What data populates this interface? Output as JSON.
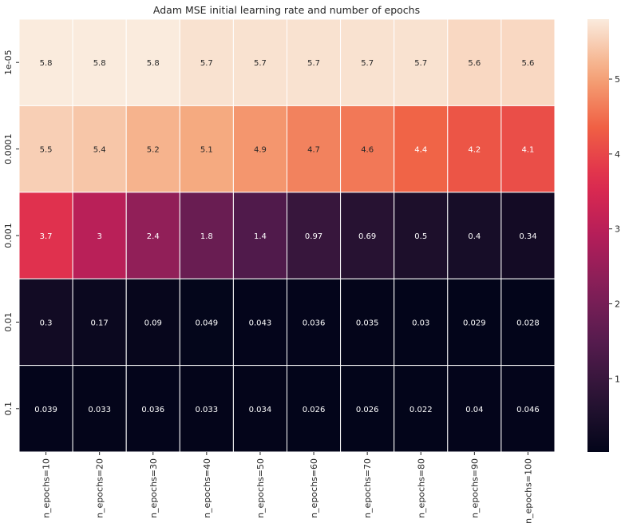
{
  "chart_data": {
    "type": "heatmap",
    "title": "Adam MSE initial learning rate and number of epochs",
    "xlabel": "",
    "ylabel": "",
    "x_categories": [
      "n_epochs=10",
      "n_epochs=20",
      "n_epochs=30",
      "n_epochs=40",
      "n_epochs=50",
      "n_epochs=60",
      "n_epochs=70",
      "n_epochs=80",
      "n_epochs=90",
      "n_epochs=100"
    ],
    "y_categories": [
      "1e-05",
      "0.0001",
      "0.001",
      "0.01",
      "0.1"
    ],
    "values": [
      [
        5.8,
        5.8,
        5.8,
        5.7,
        5.7,
        5.7,
        5.7,
        5.7,
        5.6,
        5.6
      ],
      [
        5.5,
        5.4,
        5.2,
        5.1,
        4.9,
        4.7,
        4.6,
        4.4,
        4.2,
        4.1
      ],
      [
        3.7,
        3,
        2.4,
        1.8,
        1.4,
        0.97,
        0.69,
        0.5,
        0.4,
        0.34
      ],
      [
        0.3,
        0.17,
        0.09,
        0.049,
        0.043,
        0.036,
        0.035,
        0.03,
        0.029,
        0.028
      ],
      [
        0.039,
        0.033,
        0.036,
        0.033,
        0.034,
        0.026,
        0.026,
        0.022,
        0.04,
        0.046
      ]
    ],
    "colormap": "rocket",
    "colorbar": {
      "vmin": 0.022,
      "vmax": 5.8,
      "ticks": [
        1,
        2,
        3,
        4,
        5
      ]
    },
    "grid": false,
    "cell_separator_color": "#ffffff"
  }
}
